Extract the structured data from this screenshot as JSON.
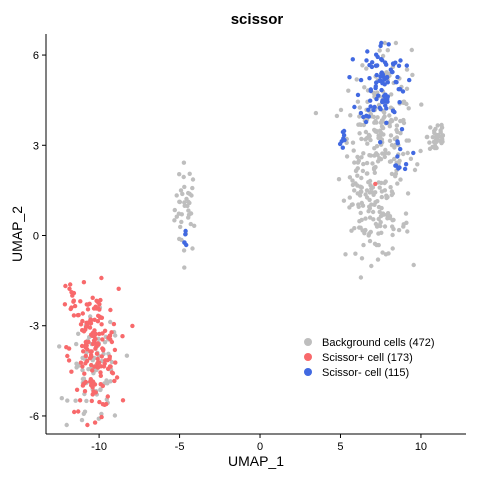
{
  "chart_data": {
    "type": "scatter",
    "title": "scissor",
    "xlabel": "UMAP_1",
    "ylabel": "UMAP_2",
    "xlim": [
      -13.3,
      12.8
    ],
    "ylim": [
      -6.6,
      6.7
    ],
    "xticks": [
      -10,
      -5,
      0,
      5,
      10
    ],
    "yticks": [
      -6,
      -3,
      0,
      3,
      6
    ],
    "grid": false,
    "legend_position": "bottom-right",
    "series": [
      {
        "name": "Background cells (472)",
        "color": "#BEBEBE",
        "clusters": [
          {
            "cx": -4.6,
            "cy": 0.9,
            "sx": 0.35,
            "sy": 0.75,
            "n": 40
          },
          {
            "cx": 7.3,
            "cy": 2.8,
            "sx": 1.1,
            "sy": 1.1,
            "n": 150
          },
          {
            "cx": 7.8,
            "cy": 4.6,
            "sx": 0.8,
            "sy": 0.9,
            "n": 70
          },
          {
            "cx": 7.3,
            "cy": 0.3,
            "sx": 1.0,
            "sy": 0.5,
            "n": 70
          },
          {
            "cx": 11.0,
            "cy": 3.3,
            "sx": 0.3,
            "sy": 0.35,
            "n": 35
          },
          {
            "cx": 6.3,
            "cy": 1.5,
            "sx": 0.5,
            "sy": 0.9,
            "n": 32
          },
          {
            "cx": -10.2,
            "cy": -4.6,
            "sx": 0.8,
            "sy": 0.9,
            "n": 75
          }
        ]
      },
      {
        "name": "Scissor+ cell (173)",
        "color": "#F8696B",
        "clusters": [
          {
            "cx": -10.3,
            "cy": -3.8,
            "sx": 0.75,
            "sy": 1.0,
            "n": 160
          },
          {
            "cx": -11.7,
            "cy": -2.0,
            "sx": 0.25,
            "sy": 0.3,
            "n": 12
          },
          {
            "cx": 7.2,
            "cy": 1.7,
            "sx": 0.05,
            "sy": 0.05,
            "n": 1
          }
        ]
      },
      {
        "name": "Scissor- cell (115)",
        "color": "#4169E1",
        "clusters": [
          {
            "cx": 7.6,
            "cy": 5.1,
            "sx": 0.7,
            "sy": 0.7,
            "n": 90
          },
          {
            "cx": 5.1,
            "cy": 3.2,
            "sx": 0.12,
            "sy": 0.25,
            "n": 8
          },
          {
            "cx": -4.6,
            "cy": -0.2,
            "sx": 0.15,
            "sy": 0.35,
            "n": 5
          },
          {
            "cx": 8.5,
            "cy": 2.6,
            "sx": 0.5,
            "sy": 0.4,
            "n": 12
          }
        ]
      }
    ]
  }
}
